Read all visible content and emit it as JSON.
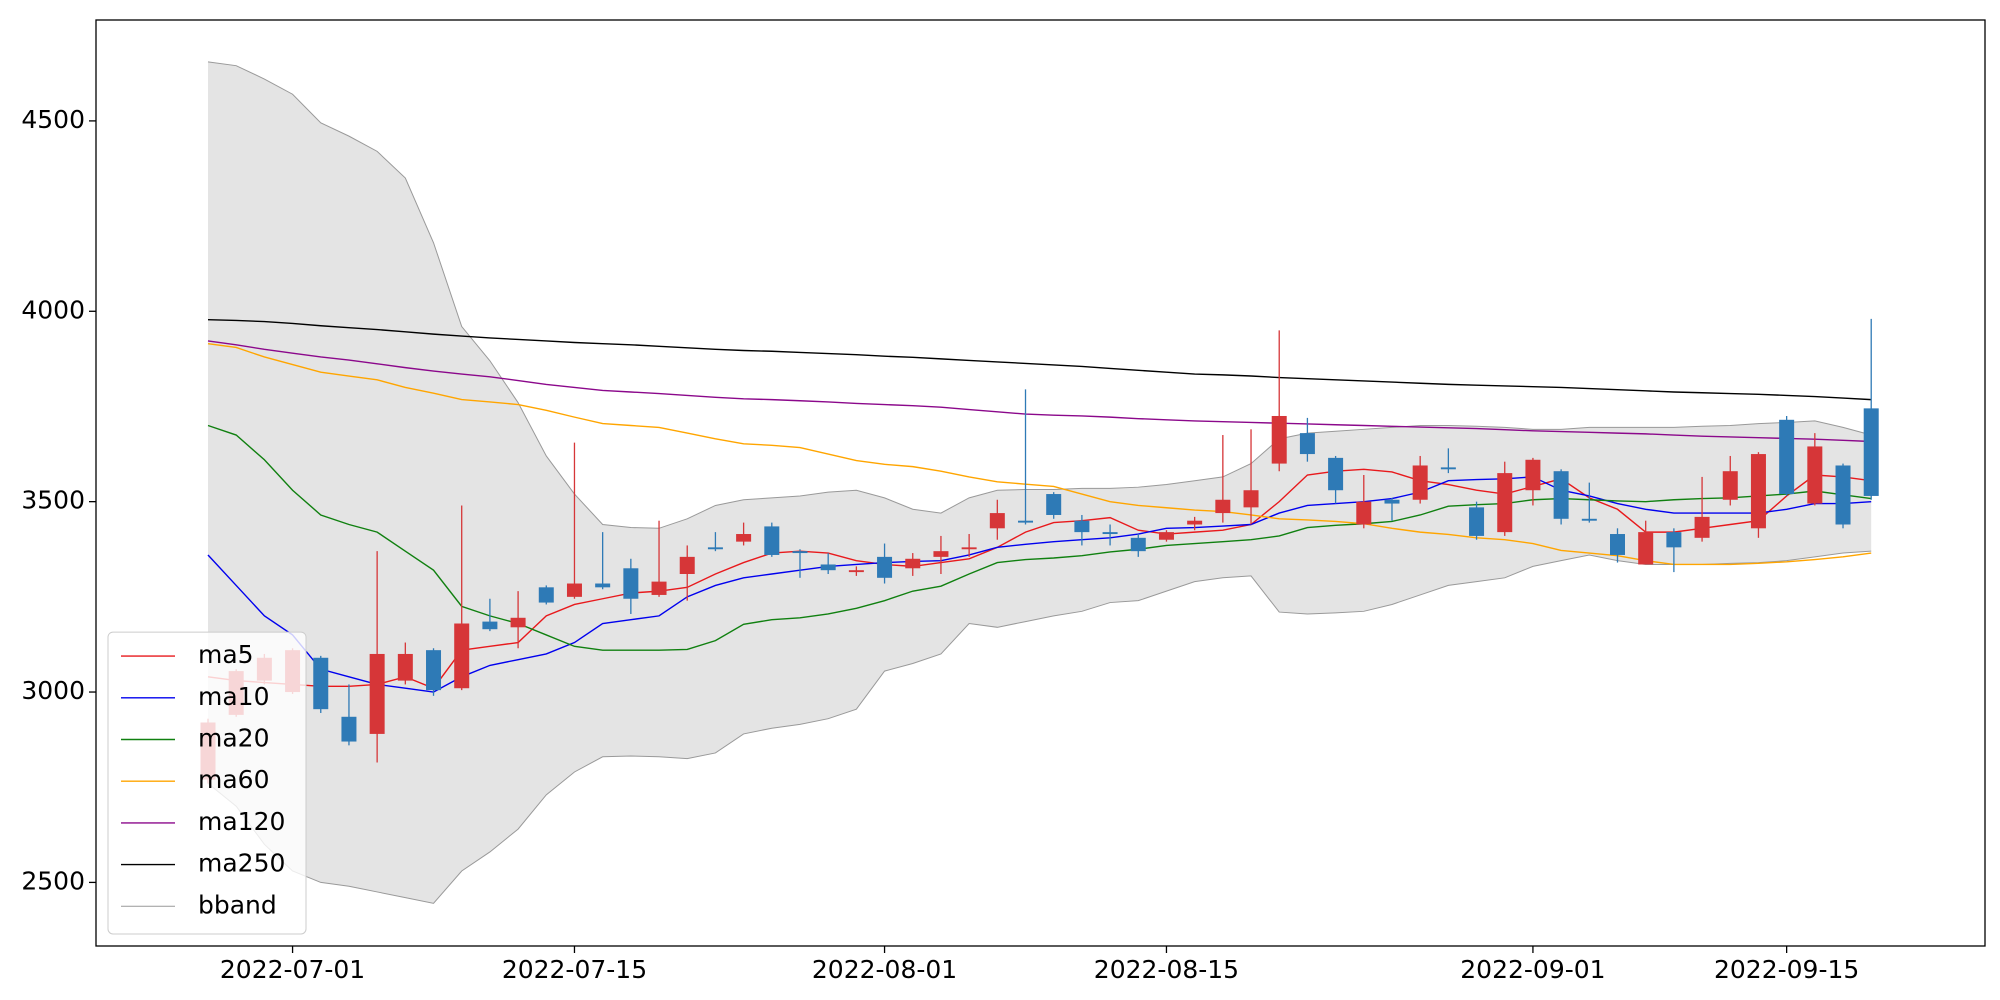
{
  "chart_data": {
    "type": "candlestick",
    "x": [
      "2022-06-28",
      "2022-06-29",
      "2022-06-30",
      "2022-07-01",
      "2022-07-04",
      "2022-07-05",
      "2022-07-06",
      "2022-07-07",
      "2022-07-08",
      "2022-07-11",
      "2022-07-12",
      "2022-07-13",
      "2022-07-14",
      "2022-07-15",
      "2022-07-18",
      "2022-07-19",
      "2022-07-20",
      "2022-07-21",
      "2022-07-22",
      "2022-07-25",
      "2022-07-26",
      "2022-07-27",
      "2022-07-28",
      "2022-07-29",
      "2022-08-01",
      "2022-08-02",
      "2022-08-03",
      "2022-08-04",
      "2022-08-05",
      "2022-08-08",
      "2022-08-09",
      "2022-08-10",
      "2022-08-11",
      "2022-08-12",
      "2022-08-15",
      "2022-08-16",
      "2022-08-17",
      "2022-08-18",
      "2022-08-19",
      "2022-08-22",
      "2022-08-23",
      "2022-08-24",
      "2022-08-25",
      "2022-08-26",
      "2022-08-29",
      "2022-08-30",
      "2022-08-31",
      "2022-09-01",
      "2022-09-02",
      "2022-09-05",
      "2022-09-06",
      "2022-09-07",
      "2022-09-08",
      "2022-09-09",
      "2022-09-13",
      "2022-09-14",
      "2022-09-15",
      "2022-09-16",
      "2022-09-19",
      "2022-09-20"
    ],
    "open": [
      2770,
      2940,
      3030,
      3000,
      3090,
      2935,
      2890,
      3030,
      3110,
      3010,
      3185,
      3170,
      3275,
      3250,
      3285,
      3325,
      3255,
      3310,
      3380,
      3395,
      3435,
      3370,
      3335,
      3315,
      3355,
      3325,
      3355,
      3375,
      3430,
      3450,
      3520,
      3450,
      3420,
      3405,
      3400,
      3440,
      3470,
      3485,
      3600,
      3680,
      3615,
      3440,
      3505,
      3505,
      3590,
      3485,
      3420,
      3530,
      3580,
      3455,
      3415,
      3335,
      3420,
      3405,
      3505,
      3430,
      3715,
      3495,
      3595,
      3745
    ],
    "high": [
      2930,
      3060,
      3100,
      3115,
      3095,
      3020,
      3370,
      3130,
      3115,
      3490,
      3245,
      3265,
      3280,
      3655,
      3420,
      3350,
      3450,
      3385,
      3420,
      3445,
      3445,
      3375,
      3365,
      3330,
      3390,
      3365,
      3410,
      3415,
      3505,
      3795,
      3525,
      3465,
      3440,
      3415,
      3425,
      3460,
      3675,
      3690,
      3950,
      3720,
      3620,
      3570,
      3510,
      3620,
      3640,
      3500,
      3605,
      3615,
      3585,
      3550,
      3430,
      3450,
      3430,
      3565,
      3620,
      3630,
      3725,
      3680,
      3600,
      3980
    ],
    "low": [
      2760,
      2935,
      3020,
      2995,
      2945,
      2860,
      2815,
      3020,
      2990,
      3005,
      3160,
      3115,
      3230,
      3245,
      3270,
      3205,
      3250,
      3240,
      3370,
      3385,
      3355,
      3300,
      3310,
      3305,
      3285,
      3305,
      3310,
      3355,
      3400,
      3440,
      3455,
      3385,
      3385,
      3355,
      3395,
      3425,
      3445,
      3440,
      3580,
      3605,
      3495,
      3430,
      3450,
      3495,
      3575,
      3400,
      3410,
      3490,
      3440,
      3445,
      3340,
      3335,
      3315,
      3395,
      3490,
      3405,
      3515,
      3490,
      3430,
      3505
    ],
    "close": [
      2920,
      3055,
      3090,
      3110,
      2955,
      2870,
      3100,
      3100,
      3005,
      3180,
      3165,
      3195,
      3235,
      3285,
      3275,
      3245,
      3290,
      3355,
      3375,
      3415,
      3360,
      3365,
      3320,
      3320,
      3300,
      3350,
      3370,
      3380,
      3470,
      3445,
      3465,
      3420,
      3415,
      3370,
      3420,
      3450,
      3505,
      3530,
      3725,
      3625,
      3530,
      3500,
      3495,
      3595,
      3585,
      3410,
      3575,
      3610,
      3455,
      3450,
      3360,
      3420,
      3380,
      3460,
      3580,
      3625,
      3520,
      3645,
      3440,
      3515
    ],
    "up_color": "#d63638",
    "down_color": "#2e7ab6",
    "series": [
      {
        "name": "ma5",
        "color": "#e8191c",
        "values": [
          3040,
          3030,
          3025,
          3020,
          3015,
          3015,
          3020,
          3040,
          3010,
          3110,
          3120,
          3130,
          3200,
          3230,
          3245,
          3260,
          3265,
          3275,
          3310,
          3340,
          3365,
          3370,
          3365,
          3345,
          3335,
          3330,
          3340,
          3350,
          3380,
          3420,
          3445,
          3450,
          3458,
          3425,
          3415,
          3420,
          3425,
          3440,
          3500,
          3570,
          3580,
          3585,
          3578,
          3555,
          3545,
          3530,
          3520,
          3540,
          3560,
          3510,
          3480,
          3420,
          3420,
          3430,
          3440,
          3450,
          3515,
          3570,
          3565,
          3555
        ]
      },
      {
        "name": "ma10",
        "color": "#0000ee",
        "values": [
          3360,
          3280,
          3200,
          3150,
          3060,
          3040,
          3020,
          3010,
          3000,
          3040,
          3070,
          3085,
          3100,
          3130,
          3180,
          3190,
          3200,
          3250,
          3280,
          3300,
          3310,
          3320,
          3330,
          3335,
          3340,
          3343,
          3345,
          3360,
          3380,
          3388,
          3395,
          3400,
          3405,
          3415,
          3430,
          3432,
          3436,
          3440,
          3470,
          3490,
          3495,
          3500,
          3508,
          3525,
          3555,
          3558,
          3560,
          3565,
          3530,
          3515,
          3495,
          3480,
          3470,
          3470,
          3470,
          3470,
          3480,
          3495,
          3495,
          3500
        ]
      },
      {
        "name": "ma20",
        "color": "#108010",
        "values": [
          3700,
          3675,
          3610,
          3530,
          3465,
          3440,
          3420,
          3370,
          3320,
          3225,
          3200,
          3180,
          3150,
          3120,
          3110,
          3110,
          3110,
          3112,
          3135,
          3178,
          3190,
          3195,
          3205,
          3220,
          3240,
          3265,
          3278,
          3310,
          3340,
          3348,
          3352,
          3358,
          3368,
          3375,
          3385,
          3390,
          3395,
          3400,
          3410,
          3432,
          3438,
          3442,
          3448,
          3465,
          3488,
          3492,
          3495,
          3505,
          3508,
          3505,
          3502,
          3500,
          3505,
          3508,
          3510,
          3515,
          3520,
          3528,
          3518,
          3508
        ]
      },
      {
        "name": "ma60",
        "color": "#ffa500",
        "values": [
          3915,
          3905,
          3880,
          3860,
          3840,
          3830,
          3820,
          3800,
          3785,
          3768,
          3762,
          3755,
          3740,
          3722,
          3705,
          3700,
          3695,
          3680,
          3665,
          3652,
          3648,
          3642,
          3625,
          3608,
          3598,
          3592,
          3580,
          3565,
          3552,
          3546,
          3540,
          3520,
          3500,
          3490,
          3484,
          3478,
          3474,
          3465,
          3455,
          3452,
          3448,
          3442,
          3430,
          3420,
          3414,
          3405,
          3400,
          3390,
          3372,
          3365,
          3358,
          3345,
          3335,
          3335,
          3335,
          3338,
          3342,
          3348,
          3355,
          3365
        ]
      },
      {
        "name": "ma120",
        "color": "#8b088b",
        "values": [
          3922,
          3912,
          3900,
          3890,
          3880,
          3872,
          3862,
          3852,
          3843,
          3835,
          3828,
          3818,
          3808,
          3800,
          3792,
          3788,
          3784,
          3779,
          3774,
          3770,
          3768,
          3765,
          3762,
          3758,
          3755,
          3752,
          3748,
          3742,
          3736,
          3730,
          3727,
          3725,
          3722,
          3718,
          3715,
          3712,
          3710,
          3708,
          3706,
          3704,
          3702,
          3700,
          3698,
          3696,
          3694,
          3692,
          3689,
          3686,
          3684,
          3682,
          3680,
          3678,
          3675,
          3672,
          3670,
          3668,
          3666,
          3664,
          3661,
          3658
        ]
      },
      {
        "name": "ma250",
        "color": "#000000",
        "values": [
          3978,
          3976,
          3973,
          3968,
          3962,
          3957,
          3952,
          3946,
          3940,
          3935,
          3930,
          3926,
          3922,
          3918,
          3915,
          3912,
          3908,
          3904,
          3900,
          3897,
          3895,
          3892,
          3889,
          3886,
          3882,
          3879,
          3875,
          3871,
          3867,
          3863,
          3859,
          3855,
          3850,
          3845,
          3840,
          3835,
          3833,
          3830,
          3826,
          3823,
          3820,
          3817,
          3814,
          3811,
          3808,
          3806,
          3804,
          3802,
          3800,
          3797,
          3794,
          3791,
          3788,
          3786,
          3784,
          3782,
          3779,
          3776,
          3772,
          3768
        ]
      }
    ],
    "bband": {
      "name": "bband",
      "color": "#999999",
      "fill": "#e4e4e4",
      "upper": [
        4655,
        4645,
        4610,
        4570,
        4495,
        4460,
        4420,
        4350,
        4180,
        3960,
        3870,
        3760,
        3620,
        3520,
        3440,
        3432,
        3430,
        3455,
        3490,
        3505,
        3510,
        3515,
        3525,
        3530,
        3510,
        3480,
        3470,
        3510,
        3530,
        3532,
        3532,
        3535,
        3535,
        3538,
        3545,
        3555,
        3565,
        3600,
        3665,
        3680,
        3685,
        3690,
        3695,
        3700,
        3700,
        3698,
        3695,
        3690,
        3690,
        3695,
        3695,
        3695,
        3695,
        3698,
        3700,
        3705,
        3708,
        3712,
        3695,
        3675
      ],
      "lower": [
        2760,
        2700,
        2600,
        2530,
        2500,
        2490,
        2475,
        2460,
        2445,
        2530,
        2580,
        2640,
        2730,
        2790,
        2830,
        2832,
        2830,
        2825,
        2840,
        2890,
        2905,
        2915,
        2930,
        2955,
        3055,
        3075,
        3100,
        3180,
        3170,
        3185,
        3200,
        3212,
        3235,
        3240,
        3265,
        3290,
        3300,
        3305,
        3210,
        3205,
        3208,
        3212,
        3230,
        3255,
        3280,
        3290,
        3300,
        3330,
        3345,
        3360,
        3345,
        3335,
        3335,
        3335,
        3338,
        3340,
        3345,
        3355,
        3365,
        3370
      ]
    },
    "ylim": [
      2333,
      4765
    ],
    "yticks": [
      2500,
      3000,
      3500,
      4000,
      4500
    ],
    "xticks": [
      "2022-07-01",
      "2022-07-15",
      "2022-08-01",
      "2022-08-15",
      "2022-09-01",
      "2022-09-15"
    ],
    "legend": "lower left"
  }
}
